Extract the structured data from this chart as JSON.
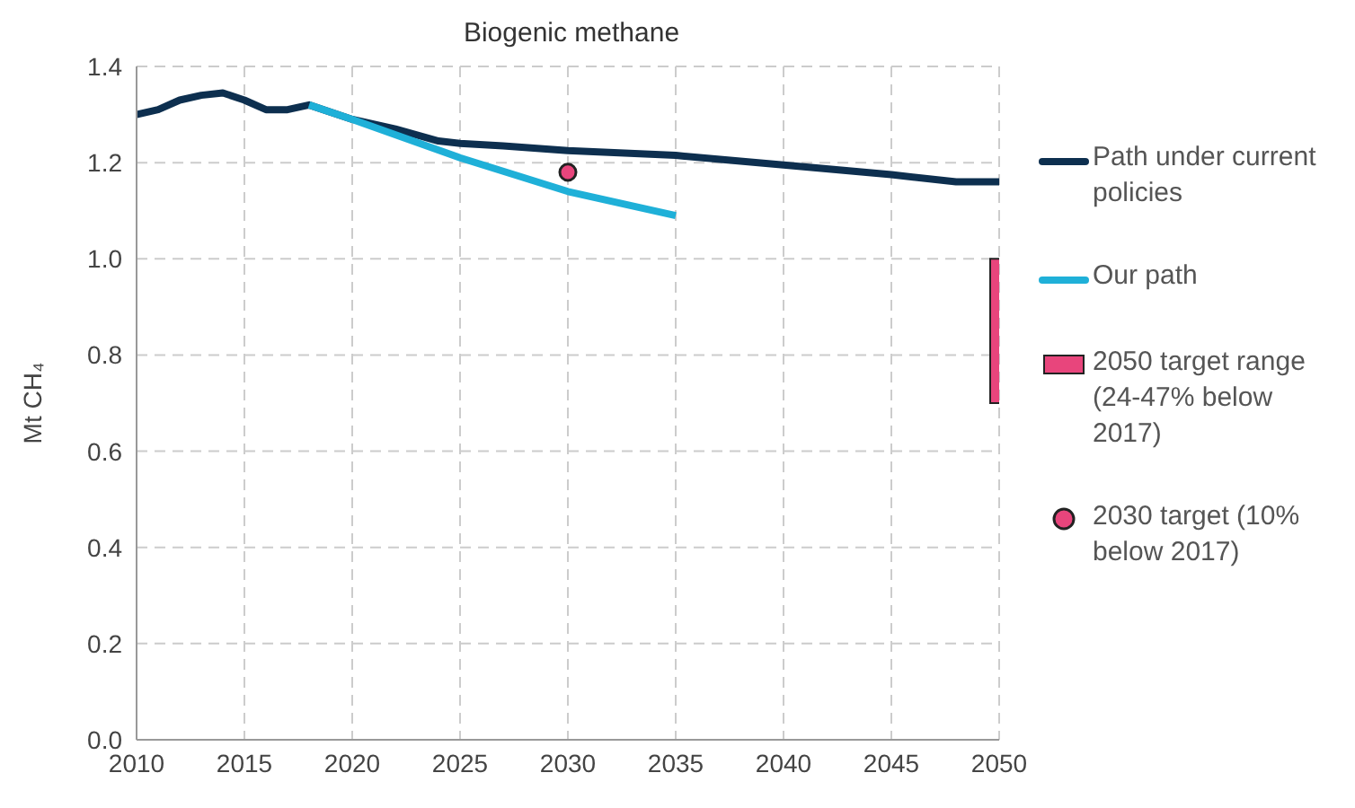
{
  "chart_data": {
    "type": "line",
    "title": "Biogenic methane",
    "ylabel": "Mt CH₄",
    "xlim": [
      2010,
      2050
    ],
    "xticks": [
      2010,
      2015,
      2020,
      2025,
      2030,
      2035,
      2040,
      2045,
      2050
    ],
    "ylim": [
      0,
      1.4
    ],
    "yticks": [
      {
        "value": 0,
        "label": "0.0"
      },
      {
        "value": 0.2,
        "label": "0.2"
      },
      {
        "value": 0.4,
        "label": "0.4"
      },
      {
        "value": 0.6,
        "label": "0.6"
      },
      {
        "value": 0.8,
        "label": "0.8"
      },
      {
        "value": 1,
        "label": "1.0"
      },
      {
        "value": 1.2,
        "label": "1.2"
      },
      {
        "value": 1.4,
        "label": "1.4"
      }
    ],
    "grid": true,
    "legend": "right",
    "line_style": "solid",
    "marker": "none",
    "series": [
      {
        "name": "Path under current policies",
        "color": "#0d2f4f",
        "x": [
          2010,
          2011,
          2012,
          2013,
          2014,
          2015,
          2016,
          2017,
          2018,
          2020,
          2022,
          2024,
          2025,
          2027,
          2030,
          2035,
          2040,
          2045,
          2048,
          2050
        ],
        "values": [
          1.3,
          1.31,
          1.33,
          1.34,
          1.345,
          1.33,
          1.31,
          1.31,
          1.32,
          1.29,
          1.27,
          1.245,
          1.24,
          1.235,
          1.225,
          1.215,
          1.195,
          1.175,
          1.16,
          1.16
        ]
      },
      {
        "name": "Our path",
        "color": "#1fb0d8",
        "x": [
          2018,
          2020,
          2025,
          2030,
          2035
        ],
        "values": [
          1.32,
          1.29,
          1.21,
          1.14,
          1.09
        ]
      },
      {
        "name": "2050 target range (24-47% below 2017)",
        "type": "bar",
        "color": "#e8457c",
        "x": [
          2050
        ],
        "base": [
          0.7
        ],
        "values": [
          0.3
        ]
      },
      {
        "name": "2030 target (10% below 2017)",
        "type": "scatter",
        "marker": "circle",
        "color": "#e8457c",
        "x": [
          2030
        ],
        "values": [
          1.18
        ]
      }
    ]
  }
}
